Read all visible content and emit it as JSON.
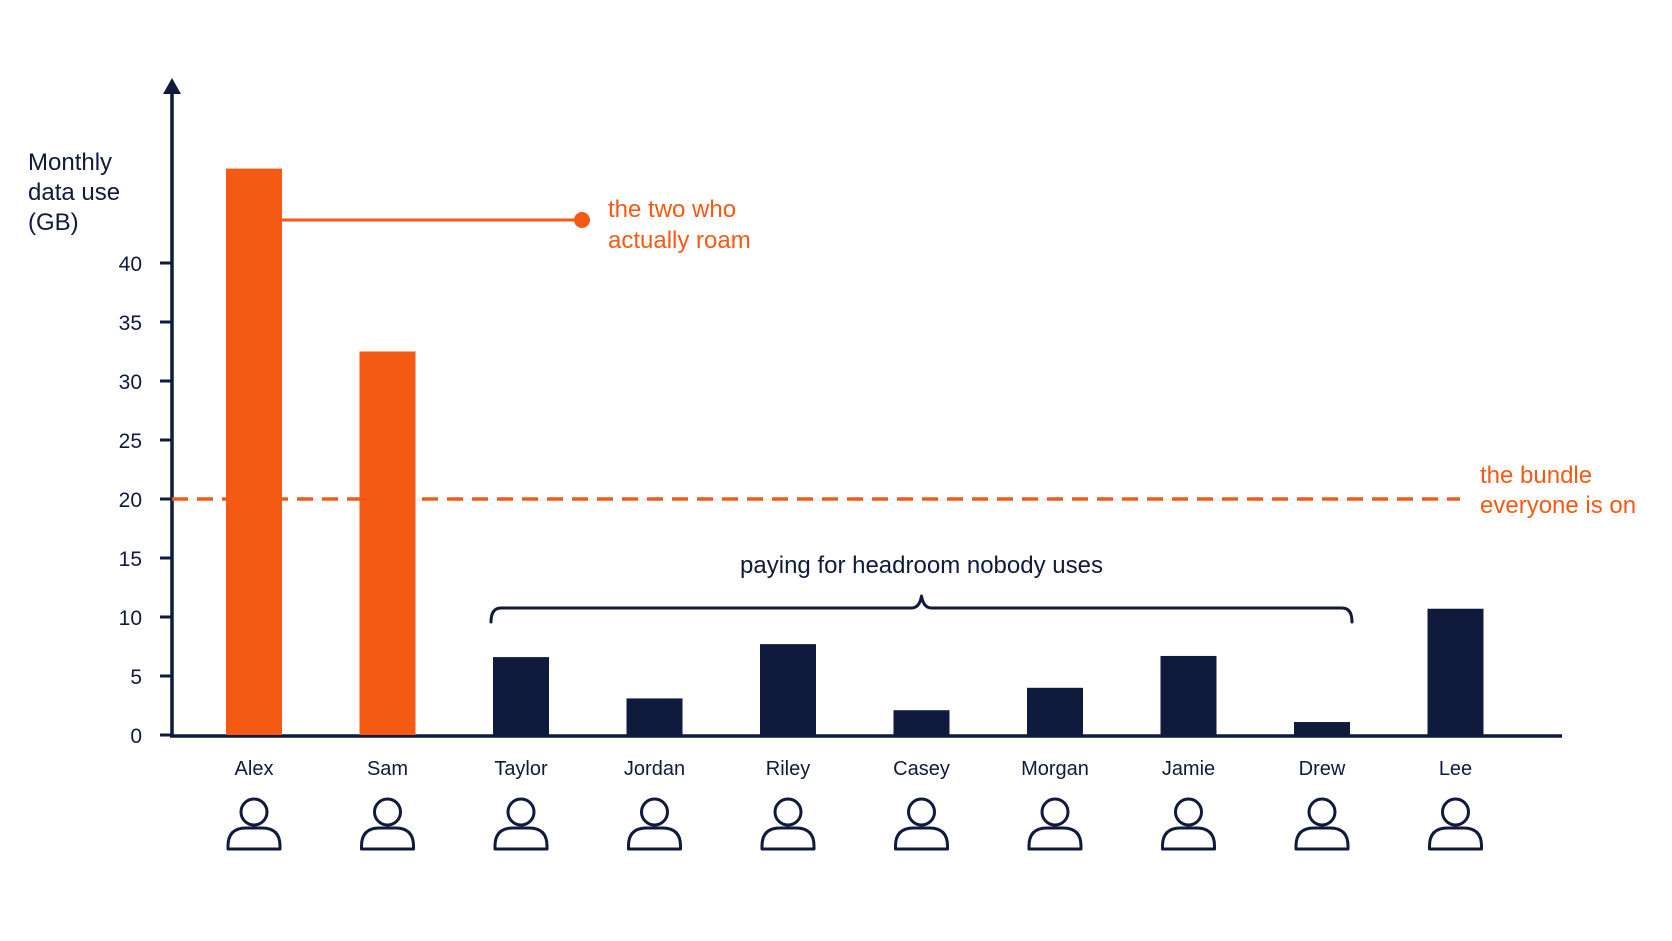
{
  "chart_data": {
    "type": "bar",
    "ylabel_lines": [
      "Monthly",
      "data use",
      "(GB)"
    ],
    "yticks": [
      0,
      5,
      10,
      15,
      20,
      25,
      30,
      35,
      40
    ],
    "ylim": [
      0,
      50
    ],
    "categories": [
      "Alex",
      "Sam",
      "Taylor",
      "Jordan",
      "Riley",
      "Casey",
      "Morgan",
      "Jamie",
      "Drew",
      "Lee"
    ],
    "values": [
      48,
      32.5,
      6.6,
      3.1,
      7.7,
      2.1,
      4,
      6.7,
      1.1,
      10.7
    ],
    "highlighted": [
      "Alex",
      "Sam"
    ],
    "reference_line": {
      "value": 20,
      "label_lines": [
        "the bundle",
        "everyone is on"
      ]
    },
    "annotations": {
      "roamers": {
        "label_lines": [
          "the two who",
          "actually roam"
        ]
      },
      "headroom": {
        "label": "paying for headroom nobody uses",
        "from": "Taylor",
        "to": "Drew"
      }
    },
    "category_icon": "person-icon",
    "grid": false
  },
  "colors": {
    "highlight": "#f55a14",
    "base": "#0f1a3c",
    "axis": "#0f1a3c",
    "background": "#ffffff"
  }
}
